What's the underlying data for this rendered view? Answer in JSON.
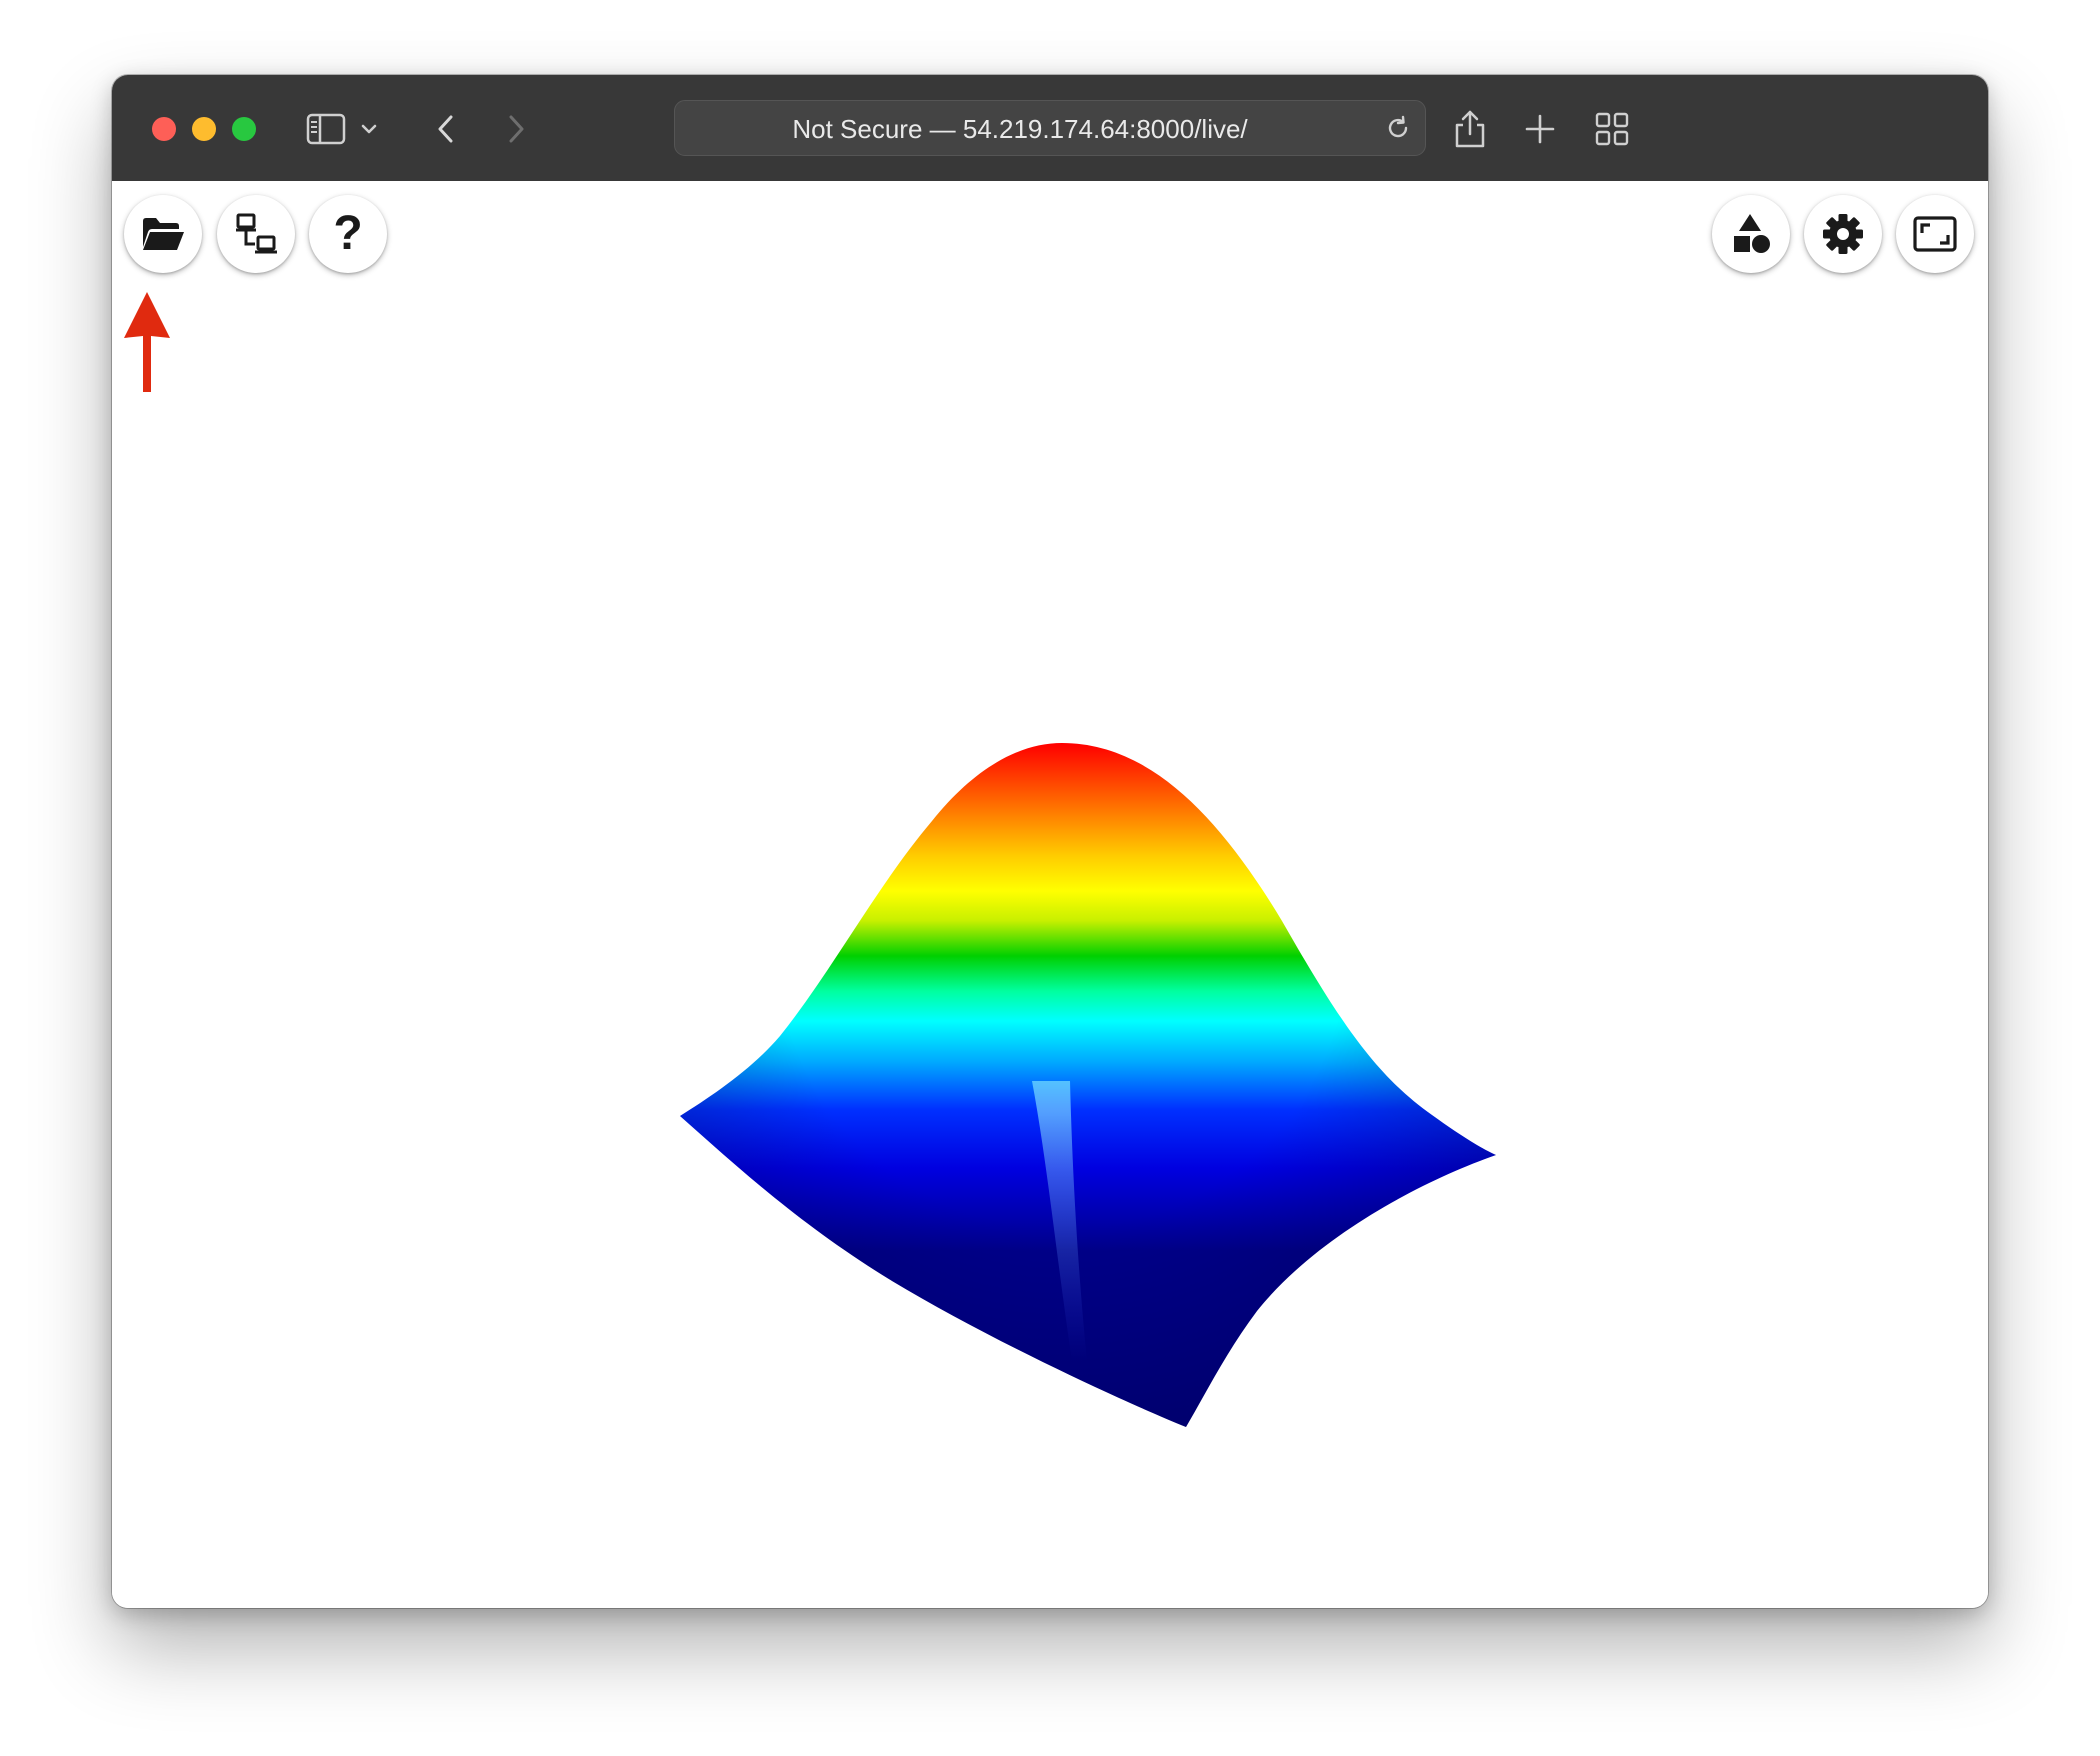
{
  "browser": {
    "address": "Not Secure — 54.219.174.64:8000/live/"
  },
  "toolbar": {
    "left_buttons": [
      {
        "name": "open-file-button",
        "icon": "folder-open-icon"
      },
      {
        "name": "remote-connect-button",
        "icon": "network-icon"
      },
      {
        "name": "help-button",
        "icon": "question-icon",
        "label": "?"
      }
    ],
    "right_buttons": [
      {
        "name": "shapes-button",
        "icon": "shapes-icon"
      },
      {
        "name": "settings-button",
        "icon": "gear-icon"
      },
      {
        "name": "fullscreen-button",
        "icon": "fullscreen-icon"
      }
    ]
  },
  "annotation": {
    "type": "arrow",
    "color": "#e02a0f",
    "points_to": "remote-connect-button"
  },
  "visualization": {
    "type": "3d-surface",
    "shape": "gaussian",
    "colormap": [
      "#00008b",
      "#0000ff",
      "#00ffff",
      "#00ff00",
      "#ffff00",
      "#ff0000",
      "#800000"
    ]
  }
}
